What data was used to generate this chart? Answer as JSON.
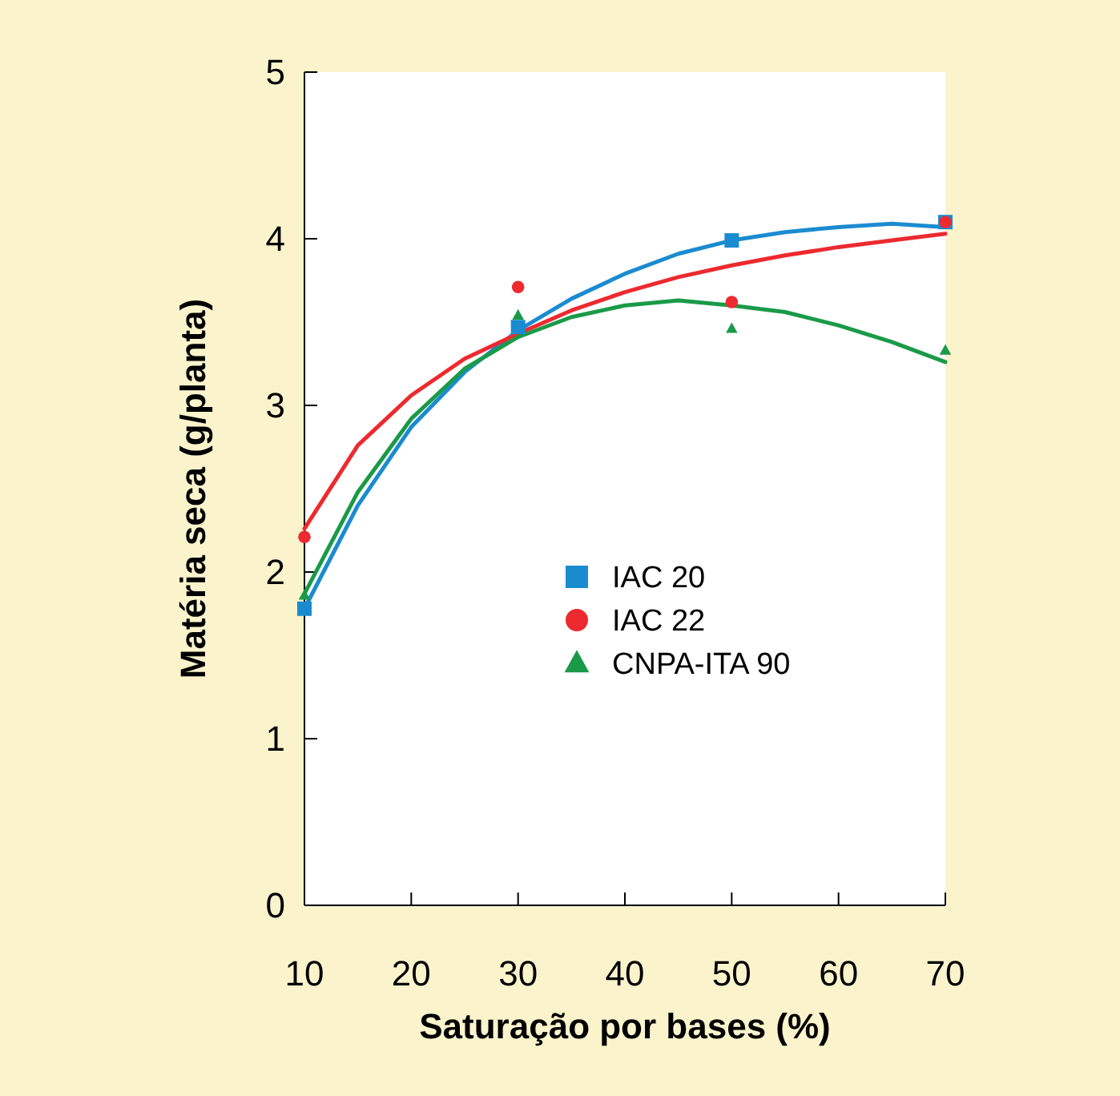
{
  "chart_data": {
    "type": "scatter",
    "xlabel": "Saturação por bases (%)",
    "ylabel": "Matéria seca (g/planta)",
    "xlim": [
      10,
      70
    ],
    "xticks": [
      10,
      20,
      30,
      40,
      50,
      60,
      70
    ],
    "ylim": [
      0,
      5
    ],
    "yticks": [
      0,
      1,
      2,
      3,
      4,
      5
    ],
    "grid": false,
    "legend": "center",
    "series": [
      {
        "name": "IAC 20",
        "marker": "square",
        "color": "#1b8bd0",
        "x": [
          10,
          30,
          50,
          70
        ],
        "values": [
          1.78,
          3.47,
          3.99,
          4.1
        ]
      },
      {
        "name": "IAC 22",
        "marker": "circle",
        "color": "#ec2a2f",
        "x": [
          10,
          30,
          50,
          70
        ],
        "values": [
          2.21,
          3.71,
          3.62,
          4.1
        ]
      },
      {
        "name": "CNPA-ITA 90",
        "marker": "triangle",
        "color": "#1a9a48",
        "x": [
          10,
          30,
          50,
          70
        ],
        "values": [
          1.86,
          3.54,
          3.46,
          3.33
        ]
      },
      {
        "type": "line",
        "color": "#1b8bd0",
        "x": [
          10,
          15,
          20,
          25,
          30,
          35,
          40,
          45,
          50,
          55,
          60,
          65,
          70
        ],
        "values": [
          1.78,
          2.4,
          2.87,
          3.2,
          3.45,
          3.64,
          3.79,
          3.91,
          3.99,
          4.04,
          4.07,
          4.09,
          4.07
        ]
      },
      {
        "type": "line",
        "color": "#ec2a2f",
        "x": [
          10,
          15,
          20,
          25,
          30,
          35,
          40,
          45,
          50,
          55,
          60,
          65,
          70
        ],
        "values": [
          2.26,
          2.76,
          3.06,
          3.28,
          3.43,
          3.57,
          3.68,
          3.77,
          3.84,
          3.9,
          3.95,
          3.99,
          4.03
        ]
      },
      {
        "type": "line",
        "color": "#1a9a48",
        "x": [
          10,
          15,
          20,
          25,
          30,
          35,
          40,
          45,
          50,
          55,
          60,
          65,
          70
        ],
        "values": [
          1.87,
          2.48,
          2.92,
          3.22,
          3.41,
          3.53,
          3.6,
          3.63,
          3.6,
          3.56,
          3.48,
          3.38,
          3.26
        ]
      }
    ]
  }
}
